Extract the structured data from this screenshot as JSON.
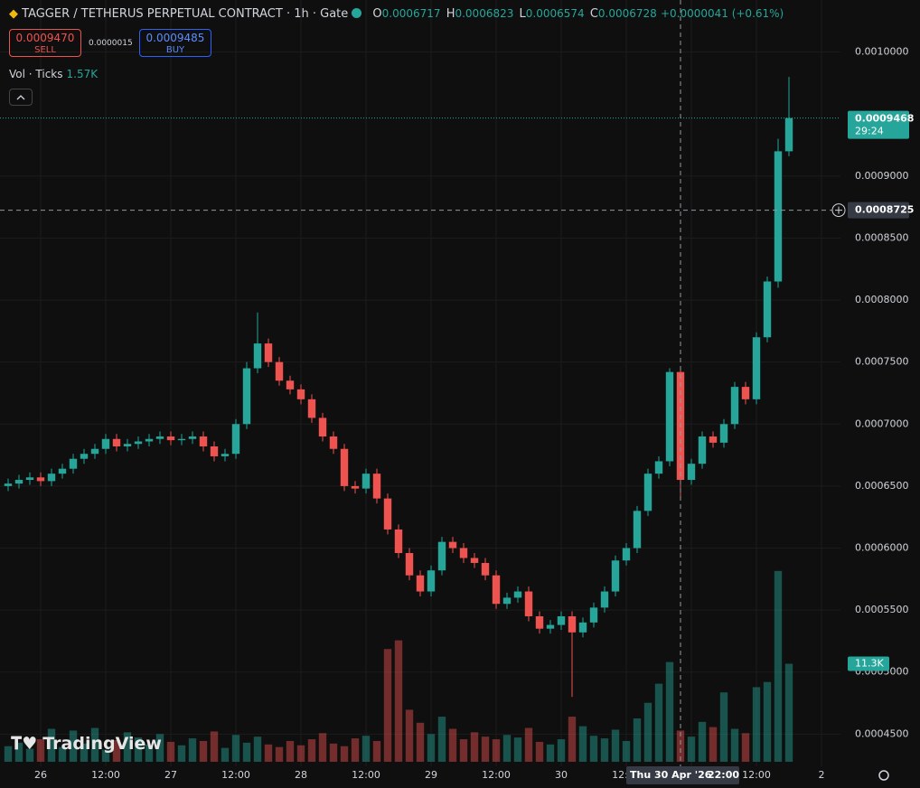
{
  "chart_data": {
    "type": "candlestick",
    "title": "TAGGER / TETHERUS PERPETUAL CONTRACT · 1h · Gate",
    "ohlc_header": {
      "o_label": "O",
      "o": "0.0006717",
      "h_label": "H",
      "h": "0.0006823",
      "l_label": "L",
      "l": "0.0006574",
      "c_label": "C",
      "c": "0.0006728",
      "change": "+0.0000041 (+0.61%)"
    },
    "sell_price": "0.0009470",
    "sell_label": "SELL",
    "spread": "0.0000015",
    "buy_price": "0.0009485",
    "buy_label": "BUY",
    "volume_title": "Vol · Ticks",
    "volume_value": "1.57K",
    "countdown": "29:24",
    "crosshair_price": 0.0008725,
    "crosshair_x": 118,
    "crosshair_date": "Thu 30 Apr '26",
    "crosshair_time": "22:00",
    "last_volume_label": "11.3K",
    "brand": "TradingView",
    "up_color": "#26a69a",
    "down_color": "#ef5350",
    "x": [
      -6,
      -4,
      -2,
      0,
      2,
      4,
      6,
      8,
      10,
      12,
      14,
      16,
      18,
      20,
      22,
      24,
      26,
      28,
      30,
      32,
      34,
      36,
      38,
      40,
      42,
      44,
      46,
      48,
      50,
      52,
      54,
      56,
      58,
      60,
      62,
      64,
      66,
      68,
      70,
      72,
      74,
      76,
      78,
      80,
      82,
      84,
      86,
      88,
      90,
      92,
      94,
      96,
      98,
      100,
      102,
      104,
      106,
      108,
      110,
      112,
      114,
      116,
      118,
      120,
      122,
      124,
      126,
      128,
      130,
      132,
      134,
      136,
      138
    ],
    "open": [
      0.00065,
      0.000652,
      0.000655,
      0.000657,
      0.000654,
      0.00066,
      0.000664,
      0.000672,
      0.000676,
      0.00068,
      0.000688,
      0.000682,
      0.000684,
      0.000686,
      0.000688,
      0.00069,
      0.000687,
      0.000688,
      0.00069,
      0.000682,
      0.000674,
      0.000676,
      0.0007,
      0.000745,
      0.000765,
      0.00075,
      0.000735,
      0.000728,
      0.00072,
      0.000705,
      0.00069,
      0.00068,
      0.00065,
      0.000648,
      0.00066,
      0.00064,
      0.000615,
      0.000596,
      0.000578,
      0.000565,
      0.000582,
      0.000605,
      0.0006,
      0.000592,
      0.000588,
      0.000578,
      0.000555,
      0.00056,
      0.000565,
      0.000545,
      0.000535,
      0.000538,
      0.000545,
      0.000532,
      0.00054,
      0.000552,
      0.000565,
      0.00059,
      0.0006,
      0.00063,
      0.00066,
      0.00067,
      0.000742,
      0.000655,
      0.000668,
      0.00069,
      0.000685,
      0.0007,
      0.00073,
      0.00072,
      0.00077,
      0.000815,
      0.00092
    ],
    "high": [
      0.000656,
      0.000659,
      0.000661,
      0.000661,
      0.000664,
      0.000668,
      0.000676,
      0.00068,
      0.000684,
      0.000692,
      0.000692,
      0.000688,
      0.00069,
      0.000692,
      0.000694,
      0.000694,
      0.000692,
      0.000694,
      0.000694,
      0.000686,
      0.00068,
      0.000704,
      0.00075,
      0.00079,
      0.000769,
      0.000754,
      0.000739,
      0.000732,
      0.000724,
      0.000709,
      0.000694,
      0.000684,
      0.000654,
      0.000664,
      0.000664,
      0.000644,
      0.000619,
      0.0006,
      0.000582,
      0.000586,
      0.000609,
      0.000609,
      0.000604,
      0.000596,
      0.000592,
      0.000582,
      0.000564,
      0.000569,
      0.000569,
      0.000549,
      0.000542,
      0.000549,
      0.000549,
      0.000544,
      0.000556,
      0.000569,
      0.000594,
      0.000604,
      0.000634,
      0.000664,
      0.000674,
      0.000745,
      0.000746,
      0.000672,
      0.000694,
      0.000694,
      0.000704,
      0.000734,
      0.000734,
      0.000774,
      0.000819,
      0.00093,
      0.00098
    ],
    "low": [
      0.000646,
      0.000648,
      0.000651,
      0.00065,
      0.00065,
      0.000656,
      0.00066,
      0.000668,
      0.000672,
      0.000676,
      0.000678,
      0.000678,
      0.00068,
      0.000682,
      0.000684,
      0.000683,
      0.000683,
      0.000684,
      0.000678,
      0.00067,
      0.00067,
      0.000672,
      0.000696,
      0.000741,
      0.000746,
      0.000731,
      0.000724,
      0.000716,
      0.000701,
      0.000686,
      0.000676,
      0.000646,
      0.000644,
      0.000644,
      0.000636,
      0.000611,
      0.000592,
      0.000574,
      0.000561,
      0.000561,
      0.000578,
      0.000596,
      0.000588,
      0.000584,
      0.000574,
      0.000551,
      0.000551,
      0.000556,
      0.000541,
      0.000531,
      0.000531,
      0.000534,
      0.00048,
      0.000528,
      0.000536,
      0.000548,
      0.000561,
      0.000586,
      0.000596,
      0.000626,
      0.000656,
      0.000666,
      0.00064,
      0.000651,
      0.000664,
      0.000681,
      0.000681,
      0.000696,
      0.000716,
      0.000716,
      0.000766,
      0.00081,
      0.000916
    ],
    "close": [
      0.000652,
      0.000655,
      0.000657,
      0.000654,
      0.00066,
      0.000664,
      0.000672,
      0.000676,
      0.00068,
      0.000688,
      0.000682,
      0.000684,
      0.000686,
      0.000688,
      0.00069,
      0.000687,
      0.000688,
      0.00069,
      0.000682,
      0.000674,
      0.000676,
      0.0007,
      0.000745,
      0.000765,
      0.00075,
      0.000735,
      0.000728,
      0.00072,
      0.000705,
      0.00069,
      0.00068,
      0.00065,
      0.000648,
      0.00066,
      0.00064,
      0.000615,
      0.000596,
      0.000578,
      0.000565,
      0.000582,
      0.000605,
      0.0006,
      0.000592,
      0.000588,
      0.000578,
      0.000555,
      0.00056,
      0.000565,
      0.000545,
      0.000535,
      0.000538,
      0.000545,
      0.000532,
      0.00054,
      0.000552,
      0.000565,
      0.00059,
      0.0006,
      0.00063,
      0.00066,
      0.00067,
      0.000742,
      0.000655,
      0.000668,
      0.00069,
      0.000685,
      0.0007,
      0.00073,
      0.00072,
      0.00077,
      0.000815,
      0.00092,
      0.0009468
    ],
    "volume": [
      1800,
      2200,
      1500,
      2600,
      3800,
      1700,
      3600,
      2100,
      3900,
      1400,
      2500,
      3400,
      2800,
      2000,
      3200,
      2300,
      1900,
      2700,
      2400,
      3500,
      1600,
      3100,
      2200,
      2900,
      2000,
      1700,
      2400,
      1900,
      2600,
      3300,
      2100,
      1800,
      2700,
      3000,
      2400,
      13000,
      14000,
      6000,
      4500,
      3200,
      5200,
      3800,
      2600,
      3400,
      2900,
      2600,
      3100,
      2800,
      3900,
      2300,
      2000,
      2600,
      5200,
      4100,
      3000,
      2700,
      3700,
      2400,
      5000,
      6800,
      9000,
      11500,
      3600,
      2900,
      4600,
      4000,
      8000,
      3800,
      3300,
      8600,
      9200,
      22000,
      11300
    ],
    "xlim": [
      -7.5,
      147.5
    ],
    "xticks": [
      {
        "value": 0,
        "label": "26"
      },
      {
        "value": 12,
        "label": "12:00"
      },
      {
        "value": 24,
        "label": "27"
      },
      {
        "value": 36,
        "label": "12:00"
      },
      {
        "value": 48,
        "label": "28"
      },
      {
        "value": 60,
        "label": "12:00"
      },
      {
        "value": 72,
        "label": "29"
      },
      {
        "value": 84,
        "label": "12:00"
      },
      {
        "value": 96,
        "label": "30"
      },
      {
        "value": 108,
        "label": "12:00"
      },
      {
        "value": 120,
        "label": "1"
      },
      {
        "value": 132,
        "label": "12:00"
      },
      {
        "value": 144,
        "label": "2"
      }
    ],
    "ylim": [
      0.000424,
      0.001042
    ],
    "yticks": [
      {
        "value": 0.00045,
        "label": "0.0004500"
      },
      {
        "value": 0.0005,
        "label": "0.0005000"
      },
      {
        "value": 0.00055,
        "label": "0.0005500"
      },
      {
        "value": 0.0006,
        "label": "0.0006000"
      },
      {
        "value": 0.00065,
        "label": "0.0006500"
      },
      {
        "value": 0.0007,
        "label": "0.0007000"
      },
      {
        "value": 0.00075,
        "label": "0.0007500"
      },
      {
        "value": 0.0008,
        "label": "0.0008000"
      },
      {
        "value": 0.00085,
        "label": "0.0008500"
      },
      {
        "value": 0.0009,
        "label": "0.0009000"
      },
      {
        "value": 0.001,
        "label": "0.0010000"
      }
    ],
    "vlim": [
      0,
      40000
    ],
    "grid": true
  }
}
